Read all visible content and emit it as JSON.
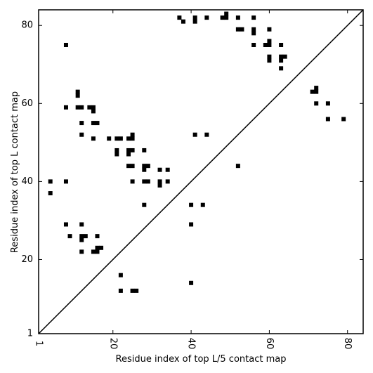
{
  "chart_data": {
    "type": "scatter",
    "xlabel": "Residue index of top L/5 contact map",
    "ylabel": "Residue index of top L contact map",
    "xlim": [
      1,
      84
    ],
    "ylim": [
      1,
      84
    ],
    "x_ticks": [
      {
        "value": 1,
        "label": "1"
      },
      {
        "value": 20,
        "label": "20"
      },
      {
        "value": 40,
        "label": "40"
      },
      {
        "value": 60,
        "label": "60"
      },
      {
        "value": 80,
        "label": "80"
      }
    ],
    "y_ticks": [
      {
        "value": 1,
        "label": "1"
      },
      {
        "value": 20,
        "label": "20"
      },
      {
        "value": 40,
        "label": "40"
      },
      {
        "value": 60,
        "label": "60"
      },
      {
        "value": 80,
        "label": "80"
      }
    ],
    "diagonal": true,
    "marker": "square",
    "marker_color": "#000000",
    "upper_points": [
      [
        8,
        75
      ],
      [
        11,
        63
      ],
      [
        11,
        62
      ],
      [
        8,
        59
      ],
      [
        11,
        59
      ],
      [
        12,
        59
      ],
      [
        14,
        59
      ],
      [
        15,
        59
      ],
      [
        15,
        58
      ],
      [
        12,
        55
      ],
      [
        15,
        55
      ],
      [
        16,
        55
      ],
      [
        12,
        52
      ],
      [
        15,
        51
      ],
      [
        19,
        51
      ],
      [
        21,
        51
      ],
      [
        22,
        51
      ],
      [
        24,
        51
      ],
      [
        25,
        51
      ],
      [
        25,
        52
      ],
      [
        21,
        48
      ],
      [
        21,
        47
      ],
      [
        24,
        48
      ],
      [
        24,
        47
      ],
      [
        25,
        48
      ],
      [
        28,
        48
      ],
      [
        24,
        44
      ],
      [
        25,
        44
      ],
      [
        28,
        44
      ],
      [
        28,
        43
      ],
      [
        29,
        44
      ],
      [
        32,
        43
      ],
      [
        34,
        43
      ],
      [
        4,
        40
      ],
      [
        8,
        40
      ],
      [
        25,
        40
      ],
      [
        28,
        40
      ],
      [
        29,
        40
      ],
      [
        32,
        40
      ],
      [
        32,
        39
      ],
      [
        34,
        40
      ],
      [
        4,
        37
      ],
      [
        28,
        34
      ],
      [
        40,
        34
      ],
      [
        43,
        34
      ],
      [
        8,
        29
      ],
      [
        12,
        29
      ],
      [
        40,
        29
      ],
      [
        9,
        26
      ],
      [
        12,
        26
      ],
      [
        12,
        25
      ],
      [
        13,
        26
      ],
      [
        16,
        26
      ],
      [
        16,
        23
      ],
      [
        17,
        23
      ],
      [
        16,
        22
      ],
      [
        15,
        22
      ],
      [
        12,
        22
      ],
      [
        22,
        16
      ],
      [
        22,
        12
      ],
      [
        25,
        12
      ],
      [
        26,
        12
      ],
      [
        40,
        14
      ],
      [
        37,
        82
      ],
      [
        38,
        81
      ],
      [
        41,
        82
      ],
      [
        41,
        81
      ],
      [
        44,
        82
      ],
      [
        48,
        82
      ],
      [
        49,
        83
      ],
      [
        49,
        82
      ],
      [
        52,
        82
      ],
      [
        56,
        82
      ],
      [
        52,
        79
      ],
      [
        53,
        79
      ],
      [
        56,
        79
      ],
      [
        56,
        78
      ],
      [
        60,
        79
      ],
      [
        56,
        75
      ],
      [
        59,
        75
      ],
      [
        60,
        76
      ],
      [
        60,
        75
      ],
      [
        63,
        75
      ],
      [
        60,
        72
      ],
      [
        60,
        71
      ],
      [
        63,
        72
      ],
      [
        63,
        71
      ],
      [
        64,
        72
      ],
      [
        63,
        69
      ],
      [
        71,
        63
      ],
      [
        72,
        64
      ],
      [
        72,
        63
      ],
      [
        72,
        60
      ],
      [
        75,
        60
      ],
      [
        75,
        56
      ],
      [
        79,
        56
      ],
      [
        41,
        52
      ],
      [
        44,
        52
      ],
      [
        52,
        44
      ]
    ]
  }
}
